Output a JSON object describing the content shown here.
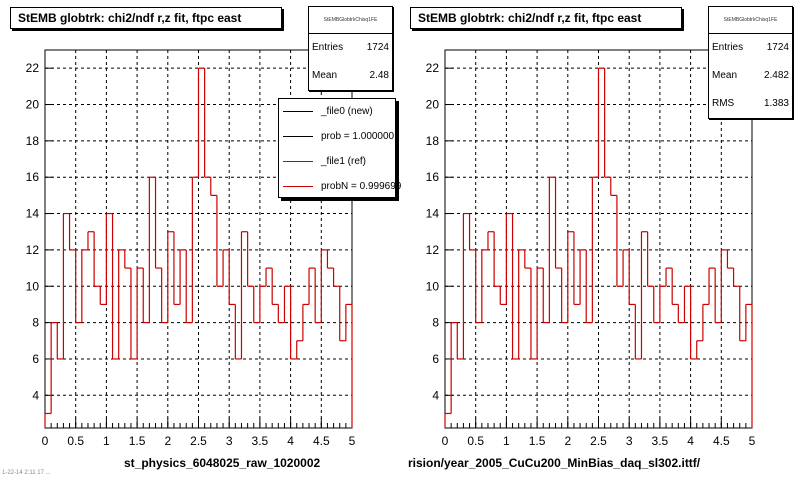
{
  "colors": {
    "hist": "#cc0000",
    "ref": "#000000",
    "grid": "#000000",
    "background": "#ffffff"
  },
  "corner_text": "1-22-14 2:11 17 ...",
  "left": {
    "title": "StEMB globtrk: chi2/ndf r,z fit, ftpc east",
    "stats": {
      "name": "StEMBGlobtrkChisq1FE",
      "rows": [
        {
          "label": "Entries",
          "value": "1724"
        },
        {
          "label": "Mean",
          "value": "2.48"
        }
      ]
    },
    "legend": [
      {
        "label": "_file0 (new)",
        "color": "#000000"
      },
      {
        "label": "prob = 1.000000",
        "color": "#000000"
      },
      {
        "label": "_file1 (ref)",
        "color": "#cc0000"
      },
      {
        "label": "probN = 0.999699",
        "color": "#cc0000"
      }
    ],
    "caption": "st_physics_6048025_raw_1020002"
  },
  "right": {
    "title": "StEMB globtrk: chi2/ndf r,z fit, ftpc east",
    "stats": {
      "name": "StEMBGlobtrkChisq1FE",
      "rows": [
        {
          "label": "Entries",
          "value": "1724"
        },
        {
          "label": "Mean",
          "value": "2.482"
        },
        {
          "label": "RMS",
          "value": "1.383"
        }
      ]
    },
    "caption": "rision/year_2005_CuCu200_MinBias_daq_sl302.ittf/"
  },
  "chart_data": [
    {
      "type": "histogram",
      "title": "StEMB globtrk: chi2/ndf r,z fit, ftpc east",
      "bin_edges_start": 0,
      "bin_width": 0.1,
      "values": [
        3,
        8,
        6,
        14,
        12,
        8,
        12,
        13,
        10,
        9,
        14,
        6,
        12,
        11,
        6,
        11,
        8,
        16,
        11,
        8,
        13,
        9,
        12,
        8,
        16,
        22,
        16,
        15,
        10,
        12,
        9,
        6,
        13,
        10,
        8,
        10,
        11,
        9,
        8,
        10,
        6,
        7,
        9,
        11,
        8,
        12,
        11,
        10,
        7,
        9
      ],
      "xlim": [
        0,
        5
      ],
      "ylim": [
        2.2,
        23
      ],
      "x_ticks": [
        "0",
        "0.5",
        "1",
        "1.5",
        "2",
        "2.5",
        "3",
        "3.5",
        "4",
        "4.5",
        "5"
      ],
      "y_ticks": [
        "4",
        "6",
        "8",
        "10",
        "12",
        "14",
        "16",
        "18",
        "20",
        "22"
      ],
      "grid": true,
      "legend_position": "top-right"
    },
    {
      "type": "histogram",
      "title": "StEMB globtrk: chi2/ndf r,z fit, ftpc east",
      "bin_edges_start": 0,
      "bin_width": 0.1,
      "values": [
        3,
        8,
        6,
        14,
        12,
        8,
        12,
        13,
        10,
        9,
        14,
        6,
        12,
        11,
        6,
        11,
        8,
        16,
        11,
        8,
        13,
        9,
        12,
        8,
        16,
        22,
        16,
        15,
        10,
        12,
        9,
        6,
        13,
        10,
        8,
        10,
        11,
        9,
        8,
        10,
        6,
        7,
        9,
        11,
        8,
        12,
        11,
        10,
        7,
        9
      ],
      "xlim": [
        0,
        5
      ],
      "ylim": [
        2.2,
        23
      ],
      "x_ticks": [
        "0",
        "0.5",
        "1",
        "1.5",
        "2",
        "2.5",
        "3",
        "3.5",
        "4",
        "4.5",
        "5"
      ],
      "y_ticks": [
        "4",
        "6",
        "8",
        "10",
        "12",
        "14",
        "16",
        "18",
        "20",
        "22"
      ],
      "grid": true
    }
  ]
}
